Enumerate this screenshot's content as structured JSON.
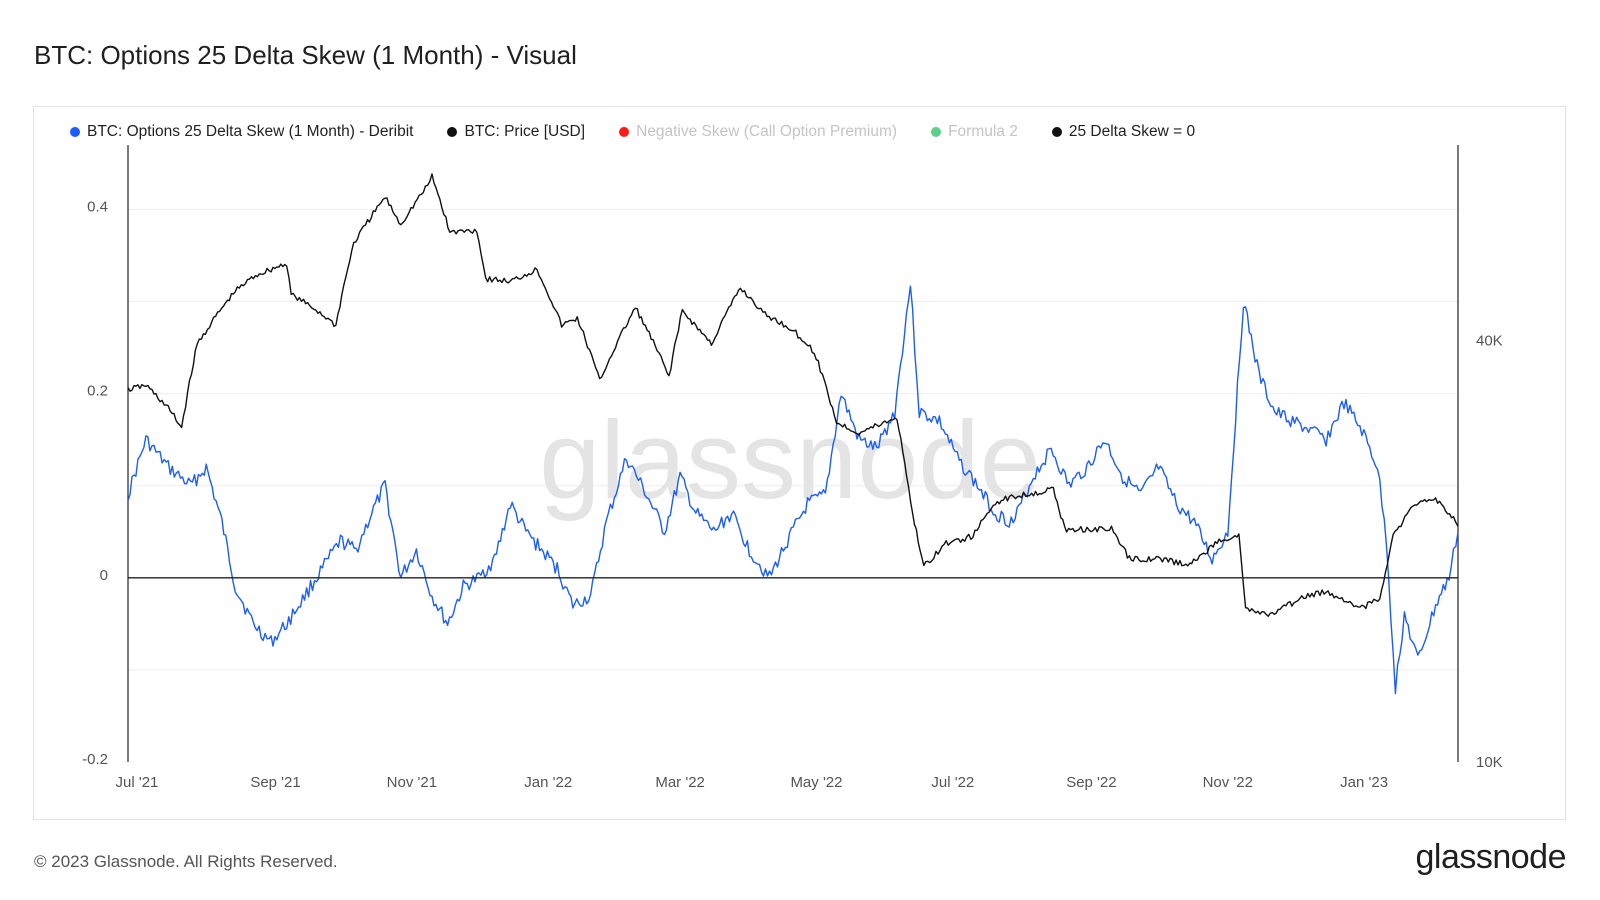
{
  "title": "BTC: Options 25 Delta Skew (1 Month) - Visual",
  "footer": {
    "copyright": "© 2023 Glassnode. All Rights Reserved.",
    "logo": "glassnode"
  },
  "watermark": "glassnode",
  "colors": {
    "skew": "#1a5cff",
    "price": "#111111",
    "negative": "#ff1a1a",
    "formula2": "#5ccf8a",
    "zero": "#111111"
  },
  "chart_data": {
    "type": "line",
    "x_tick_labels": [
      "Jul '21",
      "Sep '21",
      "Nov '21",
      "Jan '22",
      "Mar '22",
      "May '22",
      "Jul '22",
      "Sep '22",
      "Nov '22",
      "Jan '23"
    ],
    "x_tick_dates": [
      "2021-07-01",
      "2021-09-01",
      "2021-11-01",
      "2022-01-01",
      "2022-03-01",
      "2022-05-01",
      "2022-07-01",
      "2022-09-01",
      "2022-11-01",
      "2023-01-01"
    ],
    "xlim": [
      "2021-06-27",
      "2023-02-12"
    ],
    "left_axis": {
      "ticks": [
        -0.2,
        0,
        0.2,
        0.4
      ],
      "tick_labels": [
        "-0.2",
        "0",
        "0.2",
        "0.4"
      ],
      "ylim": [
        -0.2,
        0.47
      ]
    },
    "right_axis": {
      "ticks": [
        10000,
        40000
      ],
      "tick_labels": [
        "10K",
        "40K"
      ],
      "scale": "log",
      "ylim": [
        10000,
        76000
      ]
    },
    "grid": true,
    "legend_position": "top-left",
    "legend": [
      {
        "name": "BTC: Options 25 Delta Skew (1 Month) - Deribit",
        "color": "#1a5cff",
        "visible": true
      },
      {
        "name": "BTC: Price [USD]",
        "color": "#111111",
        "visible": true
      },
      {
        "name": "Negative Skew (Call Option Premium)",
        "color": "#ff1a1a",
        "visible": false
      },
      {
        "name": "Formula 2",
        "color": "#5ccf8a",
        "visible": false
      },
      {
        "name": "25 Delta Skew = 0",
        "color": "#111111",
        "visible": true
      }
    ],
    "zero_line": 0,
    "series": [
      {
        "name": "BTC: Options 25 Delta Skew (1 Month) - Deribit",
        "axis": "left",
        "color": "#1a5cff",
        "points": [
          [
            "2021-06-27",
            0.09
          ],
          [
            "2021-07-05",
            0.15
          ],
          [
            "2021-07-15",
            0.12
          ],
          [
            "2021-07-25",
            0.1
          ],
          [
            "2021-08-01",
            0.12
          ],
          [
            "2021-08-08",
            0.06
          ],
          [
            "2021-08-14",
            -0.01
          ],
          [
            "2021-08-22",
            -0.05
          ],
          [
            "2021-08-30",
            -0.07
          ],
          [
            "2021-09-06",
            -0.05
          ],
          [
            "2021-09-14",
            -0.02
          ],
          [
            "2021-09-22",
            0.01
          ],
          [
            "2021-09-30",
            0.04
          ],
          [
            "2021-10-07",
            0.03
          ],
          [
            "2021-10-14",
            0.07
          ],
          [
            "2021-10-20",
            0.1
          ],
          [
            "2021-10-27",
            0.0
          ],
          [
            "2021-11-03",
            0.03
          ],
          [
            "2021-11-10",
            -0.02
          ],
          [
            "2021-11-17",
            -0.05
          ],
          [
            "2021-11-24",
            -0.01
          ],
          [
            "2021-12-01",
            0.0
          ],
          [
            "2021-12-08",
            0.02
          ],
          [
            "2021-12-15",
            0.08
          ],
          [
            "2021-12-22",
            0.05
          ],
          [
            "2021-12-29",
            0.03
          ],
          [
            "2022-01-05",
            0.01
          ],
          [
            "2022-01-12",
            -0.03
          ],
          [
            "2022-01-20",
            -0.02
          ],
          [
            "2022-01-27",
            0.06
          ],
          [
            "2022-02-05",
            0.13
          ],
          [
            "2022-02-14",
            0.09
          ],
          [
            "2022-02-22",
            0.05
          ],
          [
            "2022-03-01",
            0.11
          ],
          [
            "2022-03-08",
            0.07
          ],
          [
            "2022-03-16",
            0.05
          ],
          [
            "2022-03-24",
            0.07
          ],
          [
            "2022-04-01",
            0.03
          ],
          [
            "2022-04-10",
            0.0
          ],
          [
            "2022-04-18",
            0.04
          ],
          [
            "2022-04-27",
            0.08
          ],
          [
            "2022-05-05",
            0.09
          ],
          [
            "2022-05-12",
            0.2
          ],
          [
            "2022-05-20",
            0.15
          ],
          [
            "2022-05-28",
            0.14
          ],
          [
            "2022-06-05",
            0.18
          ],
          [
            "2022-06-12",
            0.32
          ],
          [
            "2022-06-16",
            0.18
          ],
          [
            "2022-06-25",
            0.17
          ],
          [
            "2022-07-03",
            0.13
          ],
          [
            "2022-07-12",
            0.1
          ],
          [
            "2022-07-20",
            0.07
          ],
          [
            "2022-07-28",
            0.06
          ],
          [
            "2022-08-06",
            0.11
          ],
          [
            "2022-08-14",
            0.14
          ],
          [
            "2022-08-22",
            0.1
          ],
          [
            "2022-08-30",
            0.12
          ],
          [
            "2022-09-07",
            0.15
          ],
          [
            "2022-09-15",
            0.11
          ],
          [
            "2022-09-23",
            0.09
          ],
          [
            "2022-10-01",
            0.12
          ],
          [
            "2022-10-09",
            0.08
          ],
          [
            "2022-10-17",
            0.06
          ],
          [
            "2022-10-25",
            0.02
          ],
          [
            "2022-11-01",
            0.05
          ],
          [
            "2022-11-08",
            0.3
          ],
          [
            "2022-11-15",
            0.22
          ],
          [
            "2022-11-22",
            0.18
          ],
          [
            "2022-11-30",
            0.17
          ],
          [
            "2022-12-08",
            0.16
          ],
          [
            "2022-12-15",
            0.15
          ],
          [
            "2022-12-23",
            0.19
          ],
          [
            "2022-12-31",
            0.16
          ],
          [
            "2023-01-07",
            0.12
          ],
          [
            "2023-01-11",
            0.04
          ],
          [
            "2023-01-15",
            -0.12
          ],
          [
            "2023-01-19",
            -0.04
          ],
          [
            "2023-01-25",
            -0.09
          ],
          [
            "2023-02-02",
            -0.03
          ],
          [
            "2023-02-08",
            0.0
          ],
          [
            "2023-02-12",
            0.05
          ]
        ]
      },
      {
        "name": "BTC: Price [USD]",
        "axis": "right",
        "color": "#111111",
        "points": [
          [
            "2021-06-27",
            34000
          ],
          [
            "2021-07-05",
            34500
          ],
          [
            "2021-07-15",
            32000
          ],
          [
            "2021-07-21",
            30000
          ],
          [
            "2021-07-28",
            39500
          ],
          [
            "2021-08-07",
            44000
          ],
          [
            "2021-08-14",
            47000
          ],
          [
            "2021-08-23",
            49500
          ],
          [
            "2021-09-06",
            51500
          ],
          [
            "2021-09-08",
            46500
          ],
          [
            "2021-09-20",
            44000
          ],
          [
            "2021-09-28",
            42000
          ],
          [
            "2021-10-06",
            55000
          ],
          [
            "2021-10-20",
            64000
          ],
          [
            "2021-10-27",
            58500
          ],
          [
            "2021-11-08",
            66500
          ],
          [
            "2021-11-10",
            68500
          ],
          [
            "2021-11-18",
            57000
          ],
          [
            "2021-11-30",
            57500
          ],
          [
            "2021-12-04",
            49000
          ],
          [
            "2021-12-15",
            48500
          ],
          [
            "2021-12-27",
            50500
          ],
          [
            "2022-01-07",
            42000
          ],
          [
            "2022-01-14",
            43000
          ],
          [
            "2022-01-24",
            35000
          ],
          [
            "2022-02-09",
            44500
          ],
          [
            "2022-02-24",
            35500
          ],
          [
            "2022-03-02",
            44000
          ],
          [
            "2022-03-15",
            39500
          ],
          [
            "2022-03-28",
            47500
          ],
          [
            "2022-04-08",
            43500
          ],
          [
            "2022-04-20",
            41500
          ],
          [
            "2022-04-30",
            38500
          ],
          [
            "2022-05-10",
            30500
          ],
          [
            "2022-05-20",
            29500
          ],
          [
            "2022-06-06",
            31000
          ],
          [
            "2022-06-13",
            22500
          ],
          [
            "2022-06-18",
            19000
          ],
          [
            "2022-06-28",
            20500
          ],
          [
            "2022-07-10",
            21000
          ],
          [
            "2022-07-20",
            23500
          ],
          [
            "2022-07-30",
            24000
          ],
          [
            "2022-08-15",
            24500
          ],
          [
            "2022-08-20",
            21500
          ],
          [
            "2022-09-10",
            21500
          ],
          [
            "2022-09-18",
            19500
          ],
          [
            "2022-10-01",
            19500
          ],
          [
            "2022-10-15",
            19100
          ],
          [
            "2022-10-29",
            20800
          ],
          [
            "2022-11-06",
            21000
          ],
          [
            "2022-11-09",
            16500
          ],
          [
            "2022-11-20",
            16200
          ],
          [
            "2022-12-05",
            17200
          ],
          [
            "2022-12-15",
            17500
          ],
          [
            "2022-12-31",
            16600
          ],
          [
            "2023-01-08",
            17100
          ],
          [
            "2023-01-14",
            21000
          ],
          [
            "2023-01-21",
            22800
          ],
          [
            "2023-01-29",
            23700
          ],
          [
            "2023-02-02",
            23800
          ],
          [
            "2023-02-10",
            22200
          ],
          [
            "2023-02-12",
            21700
          ]
        ]
      }
    ]
  }
}
